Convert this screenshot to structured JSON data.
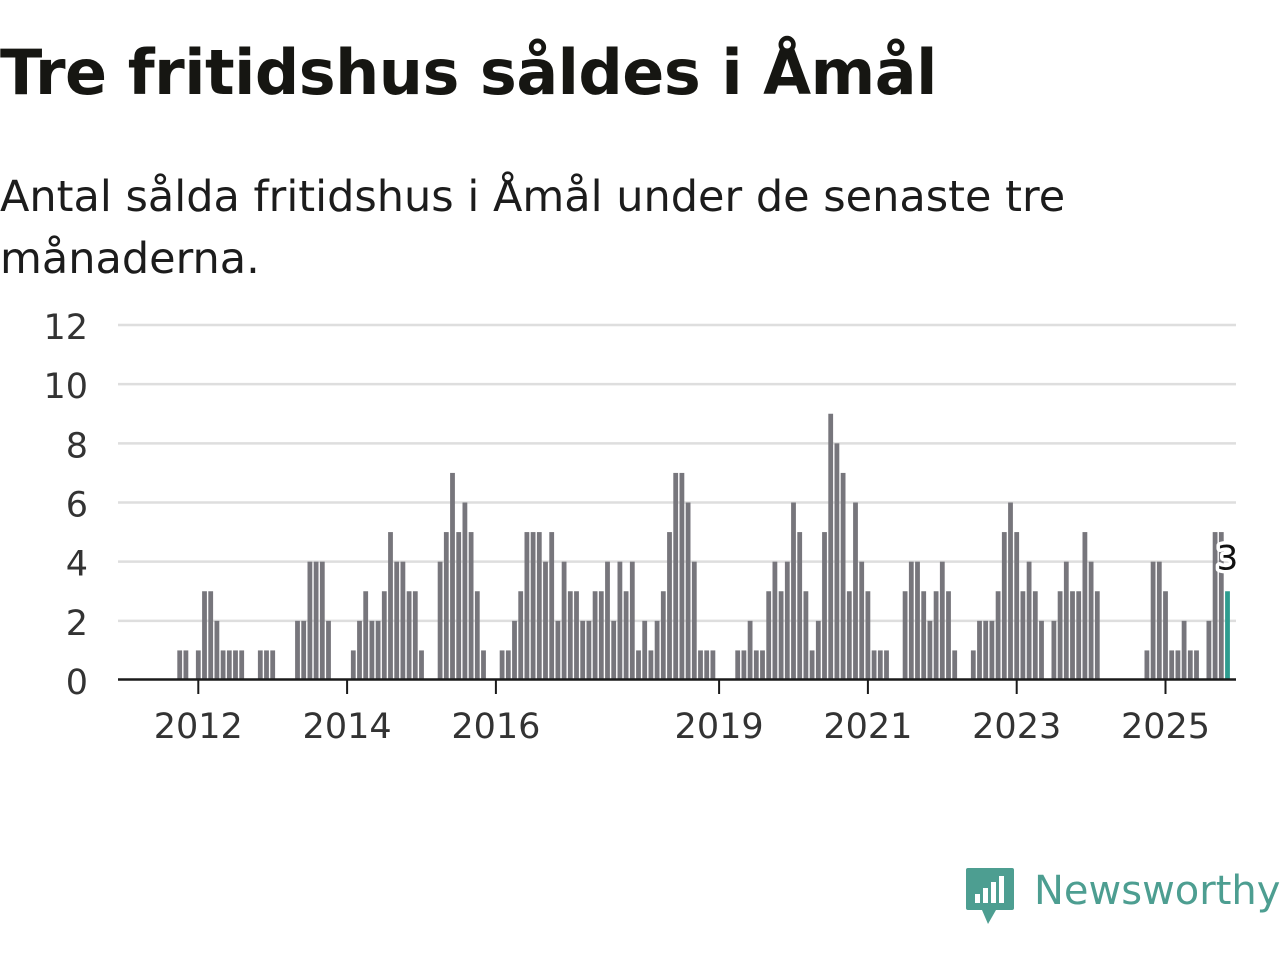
{
  "title": "Tre fritidshus såldes i Åmål",
  "subtitle": "Antal sålda fritidshus i Åmål under de senaste tre månaderna.",
  "brand": {
    "name": "Newsworthy",
    "logo_icon": "newsworthy-logo-icon",
    "color": "#4d9e91"
  },
  "chart_data": {
    "type": "bar",
    "title": "Tre fritidshus såldes i Åmål",
    "subtitle": "Antal sålda fritidshus i Åmål under de senaste tre månaderna.",
    "start": "2011-01",
    "ylim": [
      0,
      12
    ],
    "yticks": [
      0,
      2,
      4,
      6,
      8,
      10,
      12
    ],
    "xticks": [
      "2012",
      "2014",
      "2016",
      "2019",
      "2021",
      "2023",
      "2025"
    ],
    "values": [
      0,
      0,
      0,
      0,
      0,
      0,
      0,
      0,
      0,
      1,
      1,
      0,
      1,
      3,
      3,
      2,
      1,
      1,
      1,
      1,
      0,
      0,
      1,
      1,
      1,
      0,
      0,
      0,
      2,
      2,
      4,
      4,
      4,
      2,
      0,
      0,
      0,
      1,
      2,
      3,
      2,
      2,
      3,
      5,
      4,
      4,
      3,
      3,
      1,
      0,
      0,
      4,
      5,
      7,
      5,
      6,
      5,
      3,
      1,
      0,
      0,
      1,
      1,
      2,
      3,
      5,
      5,
      5,
      4,
      5,
      2,
      4,
      3,
      3,
      2,
      2,
      3,
      3,
      4,
      2,
      4,
      3,
      4,
      1,
      2,
      1,
      2,
      3,
      5,
      7,
      7,
      6,
      4,
      1,
      1,
      1,
      0,
      0,
      0,
      1,
      1,
      2,
      1,
      1,
      3,
      4,
      3,
      4,
      6,
      5,
      3,
      1,
      2,
      5,
      9,
      8,
      7,
      3,
      6,
      4,
      3,
      1,
      1,
      1,
      0,
      0,
      3,
      4,
      4,
      3,
      2,
      3,
      4,
      3,
      1,
      0,
      0,
      1,
      2,
      2,
      2,
      3,
      5,
      6,
      5,
      3,
      4,
      3,
      2,
      0,
      2,
      3,
      4,
      3,
      3,
      5,
      4,
      3,
      0,
      0,
      0,
      0,
      0,
      0,
      0,
      1,
      4,
      4,
      3,
      1,
      1,
      2,
      1,
      1,
      0,
      2,
      5,
      5,
      3
    ],
    "highlight": {
      "index": 178,
      "value": 3,
      "label": "3",
      "color": "#2e9c8f"
    },
    "bar_color": "#77767c",
    "grid": true
  }
}
